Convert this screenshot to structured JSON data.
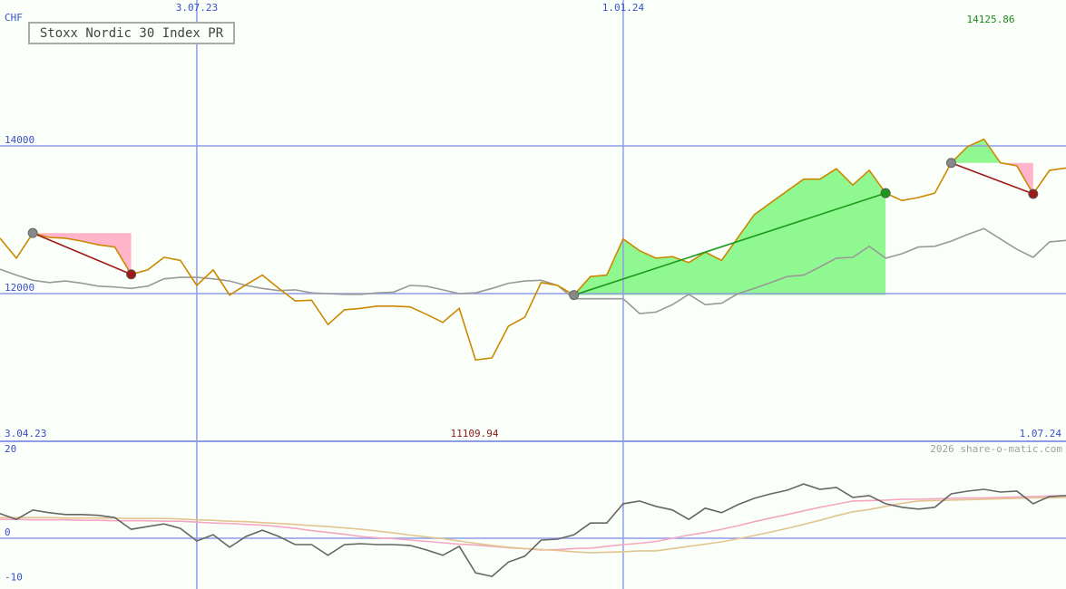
{
  "chart_data": [
    {
      "type": "line",
      "title": "Stoxx Nordic 30 Index PR",
      "unit": "CHF",
      "watermark": "2026 share-o-matic.com",
      "range_labels": [
        "3.04.23",
        "1.07.24"
      ],
      "high": 14125.86,
      "low": 11109.94,
      "categories": [
        null,
        null,
        null,
        null,
        null,
        null,
        null,
        null,
        null,
        null,
        null,
        null,
        "3.07.23",
        null,
        null,
        null,
        null,
        null,
        null,
        null,
        null,
        null,
        null,
        null,
        null,
        null,
        null,
        null,
        null,
        null,
        null,
        null,
        null,
        null,
        null,
        null,
        null,
        null,
        "1.01.24",
        null,
        null,
        null,
        null,
        null,
        null,
        null,
        null,
        null,
        null,
        null,
        null,
        null,
        null,
        null,
        null,
        null,
        null,
        null,
        null,
        null,
        null,
        null,
        null,
        null,
        null,
        null
      ],
      "series": [
        {
          "color": "#999999",
          "values": [
            12330,
            12250,
            12180,
            12150,
            12170,
            12140,
            12100,
            12090,
            12070,
            12100,
            12200,
            12220,
            12220,
            12200,
            12170,
            12110,
            12070,
            12040,
            12050,
            12010,
            12000,
            11990,
            11990,
            12010,
            12020,
            12110,
            12100,
            12050,
            12000,
            12010,
            12070,
            12140,
            12170,
            12180,
            12110,
            11930,
            11930,
            11930,
            11930,
            11730,
            11750,
            11850,
            11990,
            11850,
            11870,
            12000,
            12070,
            12150,
            12230,
            12250,
            12360,
            12480,
            12490,
            12640,
            12480,
            12540,
            12630,
            12640,
            12710,
            12800,
            12880,
            12740,
            12600,
            12490,
            12700,
            12720
          ]
        },
        {
          "name": "Stoxx Nordic 30 Index PR",
          "color": "#cc8800",
          "values": [
            12750,
            12480,
            12820,
            12760,
            12750,
            12710,
            12660,
            12630,
            12260,
            12320,
            12490,
            12450,
            12110,
            12320,
            11980,
            12120,
            12250,
            12070,
            11900,
            11910,
            11580,
            11780,
            11800,
            11830,
            11830,
            11820,
            11720,
            11610,
            11800,
            11100,
            11130,
            11560,
            11680,
            12150,
            12110,
            11980,
            12230,
            12250,
            12740,
            12580,
            12480,
            12500,
            12420,
            12560,
            12450,
            12760,
            13070,
            13230,
            13390,
            13550,
            13550,
            13690,
            13470,
            13670,
            13360,
            13260,
            13300,
            13360,
            13770,
            13990,
            14090,
            13770,
            13730,
            13350,
            13670,
            13700
          ]
        }
      ],
      "signals": [
        {
          "from": 2,
          "to": 8,
          "color": "#a01818"
        },
        {
          "from": 35,
          "to": 54,
          "color": "#1a9a1a"
        },
        {
          "from": 58,
          "to": 63,
          "color": "#a01818"
        }
      ],
      "ylim": [
        10000,
        15975
      ],
      "yticks": [
        12000,
        14000
      ],
      "grid": true
    },
    {
      "type": "line",
      "series": [
        {
          "color": "#f4a6c4",
          "values": [
            4.2,
            4.2,
            4.1,
            4.1,
            4.1,
            4.0,
            4.0,
            3.9,
            3.9,
            3.9,
            3.8,
            3.8,
            3.6,
            3.4,
            3.3,
            3.1,
            2.9,
            2.6,
            2.2,
            1.7,
            1.3,
            0.9,
            0.4,
            0.1,
            -0.1,
            -0.4,
            -0.7,
            -1.0,
            -1.3,
            -1.5,
            -1.8,
            -2.1,
            -2.3,
            -2.6,
            -2.5,
            -2.3,
            -2.2,
            -1.8,
            -1.4,
            -1.1,
            -0.7,
            0.0,
            0.7,
            1.3,
            2.0,
            2.8,
            3.7,
            4.5,
            5.3,
            6.1,
            6.9,
            7.6,
            8.3,
            8.4,
            8.5,
            8.7,
            8.7,
            8.8,
            8.9,
            9.0,
            9.0,
            9.1,
            9.2,
            9.3,
            9.4,
            9.5
          ]
        },
        {
          "color": "#e2c48e",
          "values": [
            4.6,
            4.6,
            4.6,
            4.6,
            4.5,
            4.5,
            4.5,
            4.5,
            4.4,
            4.4,
            4.4,
            4.3,
            4.1,
            4.0,
            3.8,
            3.7,
            3.5,
            3.3,
            3.1,
            2.8,
            2.6,
            2.3,
            2.0,
            1.6,
            1.2,
            0.7,
            0.3,
            -0.1,
            -0.6,
            -1.1,
            -1.6,
            -2.0,
            -2.3,
            -2.5,
            -2.7,
            -3.0,
            -3.2,
            -3.1,
            -3.0,
            -2.8,
            -2.8,
            -2.3,
            -1.8,
            -1.3,
            -0.8,
            -0.1,
            0.6,
            1.4,
            2.2,
            3.1,
            4.0,
            5.0,
            5.9,
            6.4,
            7.1,
            7.8,
            8.3,
            8.4,
            8.5,
            8.6,
            8.7,
            8.8,
            8.9,
            9.0,
            9.0,
            9.1
          ]
        },
        {
          "color": "#666666",
          "values": [
            5.5,
            4.2,
            6.3,
            5.7,
            5.3,
            5.3,
            5.1,
            4.6,
            2.0,
            2.6,
            3.2,
            2.2,
            -0.6,
            0.8,
            -2.0,
            0.4,
            1.8,
            0.4,
            -1.4,
            -1.4,
            -3.8,
            -1.4,
            -1.2,
            -1.4,
            -1.4,
            -1.6,
            -2.6,
            -3.8,
            -1.8,
            -7.7,
            -8.5,
            -5.3,
            -4.0,
            -0.4,
            -0.2,
            0.8,
            3.4,
            3.4,
            7.7,
            8.3,
            7.1,
            6.3,
            4.2,
            6.7,
            5.7,
            7.5,
            8.9,
            9.9,
            10.7,
            12.1,
            10.9,
            11.3,
            9.1,
            9.5,
            7.7,
            6.9,
            6.5,
            6.9,
            9.9,
            10.5,
            10.9,
            10.3,
            10.5,
            7.7,
            9.3,
            9.5
          ]
        }
      ],
      "ylim": [
        -11.3,
        21.6
      ],
      "yticks": [
        -10,
        0,
        20
      ],
      "grid": false,
      "hline": 0
    }
  ]
}
